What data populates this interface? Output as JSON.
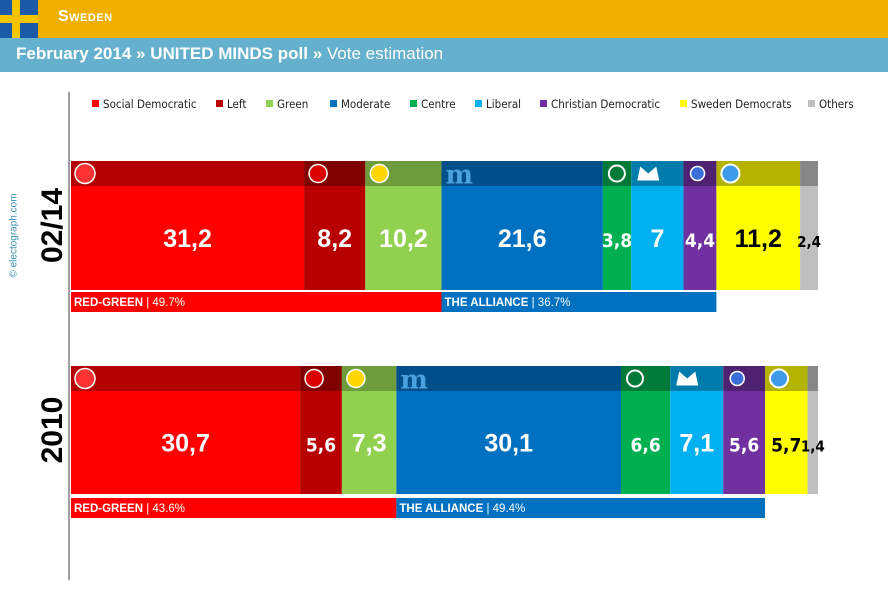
{
  "header": {
    "country": "Sweden",
    "subtitle_date": "February 2014",
    "subtitle_poll": "UNITED MINDS poll",
    "subtitle_sep": "»",
    "subtitle_kind": "Vote estimation",
    "credit": "© electograph.com"
  },
  "chart_data": {
    "type": "bar",
    "stacked": true,
    "orientation": "horizontal",
    "legend_position": "top",
    "parties": [
      {
        "name": "Social Democratic",
        "color": "#ff0000",
        "header_color": "#b30000",
        "icon": "rose-icon"
      },
      {
        "name": "Left",
        "color": "#b80000",
        "header_color": "#800000",
        "icon": "v-icon"
      },
      {
        "name": "Green",
        "color": "#92d050",
        "header_color": "#6e9b3c",
        "icon": "sun-icon"
      },
      {
        "name": "Moderate",
        "color": "#0070c0",
        "header_color": "#004f8a",
        "icon": "m-icon"
      },
      {
        "name": "Centre",
        "color": "#00b050",
        "header_color": "#007a38",
        "icon": "clover-icon"
      },
      {
        "name": "Liberal",
        "color": "#00b0f0",
        "header_color": "#007cac",
        "icon": "crown-icon"
      },
      {
        "name": "Christian Democratic",
        "color": "#7030a0",
        "header_color": "#4f2271",
        "icon": "flower-icon"
      },
      {
        "name": "Sweden Democrats",
        "color": "#ffff00",
        "header_color": "#b3b300",
        "icon": "blossom-icon"
      },
      {
        "name": "Others",
        "color": "#bfbfbf",
        "header_color": "#878787",
        "icon": ""
      }
    ],
    "series": [
      {
        "name": "02/14",
        "values": [
          31.2,
          8.2,
          10.2,
          21.6,
          3.8,
          7,
          4.4,
          11.2,
          2.4
        ],
        "labels": [
          "31,2",
          "8,2",
          "10,2",
          "21,6",
          "3,8",
          "7",
          "4,4",
          "11,2",
          "2,4"
        ],
        "blocs": [
          {
            "name": "RED-GREEN",
            "value": "49.7%",
            "parties": [
              0,
              1,
              2
            ],
            "color": "#ff0000"
          },
          {
            "name": "THE ALLIANCE",
            "value": "36.7%",
            "parties": [
              3,
              4,
              5,
              6
            ],
            "color": "#0070c0"
          }
        ]
      },
      {
        "name": "2010",
        "values": [
          30.7,
          5.6,
          7.3,
          30.1,
          6.6,
          7.1,
          5.6,
          5.7,
          1.4
        ],
        "labels": [
          "30,7",
          "5,6",
          "7,3",
          "30,1",
          "6,6",
          "7,1",
          "5,6",
          "5,7",
          "1,4"
        ],
        "blocs": [
          {
            "name": "RED-GREEN",
            "value": "43.6%",
            "parties": [
              0,
              1,
              2
            ],
            "color": "#ff0000"
          },
          {
            "name": "THE ALLIANCE",
            "value": "49.4%",
            "parties": [
              3,
              4,
              5,
              6
            ],
            "color": "#0070c0"
          }
        ]
      }
    ]
  }
}
